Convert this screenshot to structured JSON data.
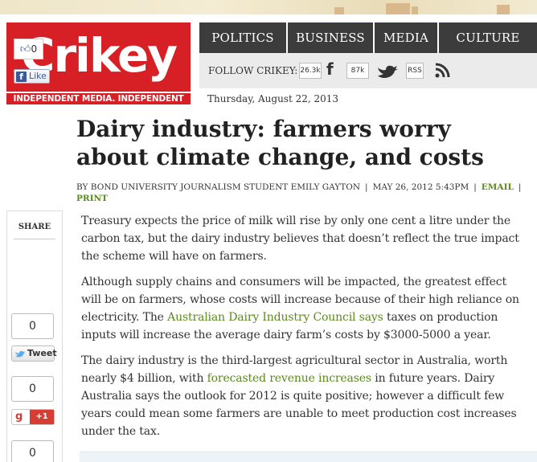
{
  "header": {
    "logo_text": "Crikey",
    "tagline": "INDEPENDENT MEDIA. INDEPENDENT MINDS."
  },
  "nav": {
    "items": [
      "POLITICS",
      "BUSINESS",
      "MEDIA",
      "CULTURE"
    ]
  },
  "follow": {
    "label": "FOLLOW CRIKEY:",
    "facebook_count": "26.3k",
    "twitter_count": "87k",
    "rss_label": "RSS"
  },
  "date": "Thursday, August 22, 2013",
  "article": {
    "title": "Dairy industry: farmers worry about climate change, and costs",
    "author": "BY BOND UNIVERSITY JOURNALISM STUDENT EMILY GAYTON",
    "published": "MAY 26, 2012 5:43PM",
    "email_link": "EMAIL",
    "print_link": "PRINT",
    "p1": "Treasury expects the price of milk will rise by only one cent a litre under the carbon tax, but the dairy industry believes that doesn’t reflect the true impact the scheme will have on farmers.",
    "p2_a": "Although supply chains and consumers will be impacted, the greatest effect will be on farmers, whose costs will increase because of their high reliance on electricity. The ",
    "p2_link": "Australian Dairy Industry Council says",
    "p2_b": " taxes on production inputs will increase the average dairy farm’s costs by $3000-5000 a year.",
    "p3_a": "The dairy industry is the third-largest agricultural sector in Australia, worth nearly $4 billion, with ",
    "p3_link": "forecasted revenue increases",
    "p3_b": " in future years. Dairy Australia says the outlook for 2012 is quite positive; however a difficult few years could mean some farmers are unable to meet production cost increases under the tax."
  },
  "share": {
    "label": "SHARE",
    "like_count": "0",
    "like_label": "Like",
    "tweet_count": "0",
    "tweet_label": "Tweet",
    "gplus_count": "0",
    "gplus_label": "+1",
    "extra_count": "0"
  },
  "colors": {
    "brand_red": "#d71f26",
    "nav_dark": "#3c3c3c",
    "link_green": "#5b8a1e"
  }
}
